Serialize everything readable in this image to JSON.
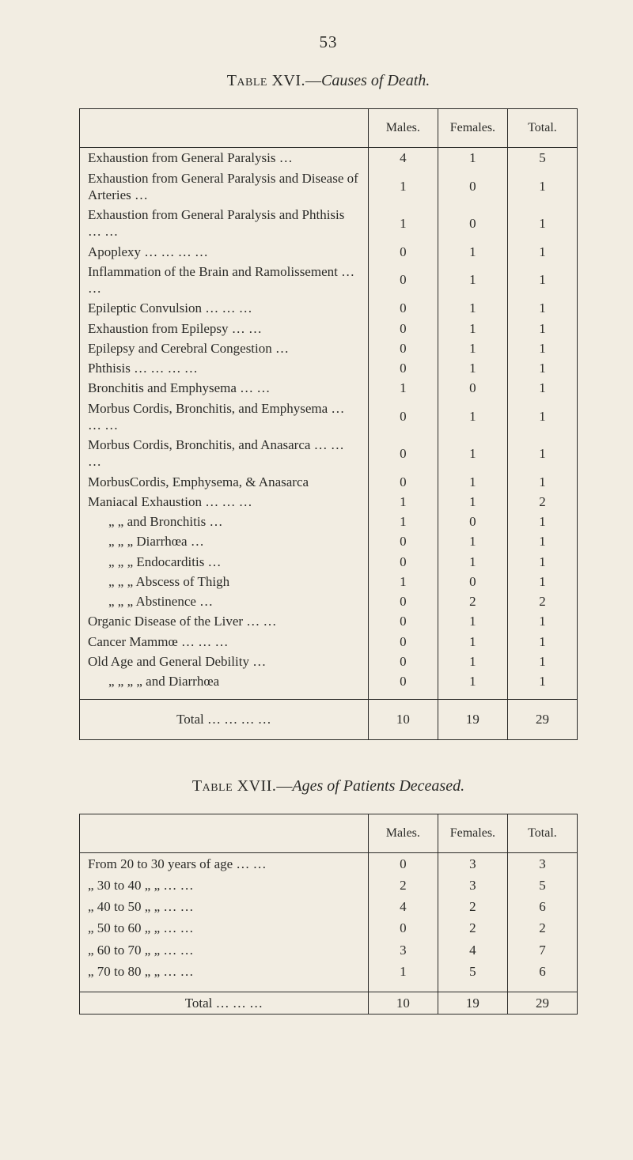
{
  "page_number": "53",
  "table16": {
    "title_sc": "Table XVI.",
    "title_dash": "—",
    "title_it": "Causes of Death.",
    "headers": {
      "males": "Males.",
      "females": "Females.",
      "total": "Total."
    },
    "rows": [
      {
        "label": "Exhaustion from General Paralysis …",
        "m": "4",
        "f": "1",
        "t": "5"
      },
      {
        "label": "Exhaustion from General Paralysis and Disease of Arteries …",
        "m": "1",
        "f": "0",
        "t": "1"
      },
      {
        "label": "Exhaustion from General Paralysis and Phthisis … …",
        "m": "1",
        "f": "0",
        "t": "1"
      },
      {
        "label": "Apoplexy … … … …",
        "m": "0",
        "f": "1",
        "t": "1"
      },
      {
        "label": "Inflammation of the Brain and Ramolissement … …",
        "m": "0",
        "f": "1",
        "t": "1"
      },
      {
        "label": "Epileptic Convulsion … … …",
        "m": "0",
        "f": "1",
        "t": "1"
      },
      {
        "label": "Exhaustion from Epilepsy … …",
        "m": "0",
        "f": "1",
        "t": "1"
      },
      {
        "label": "Epilepsy and Cerebral Congestion …",
        "m": "0",
        "f": "1",
        "t": "1"
      },
      {
        "label": "Phthisis … … … …",
        "m": "0",
        "f": "1",
        "t": "1"
      },
      {
        "label": "Bronchitis and Emphysema … …",
        "m": "1",
        "f": "0",
        "t": "1"
      },
      {
        "label": "Morbus Cordis, Bronchitis, and Emphysema … … …",
        "m": "0",
        "f": "1",
        "t": "1"
      },
      {
        "label": "Morbus Cordis, Bronchitis, and Anasarca … … …",
        "m": "0",
        "f": "1",
        "t": "1"
      },
      {
        "label": "MorbusCordis, Emphysema, & Anasarca",
        "m": "0",
        "f": "1",
        "t": "1"
      },
      {
        "label": "Maniacal Exhaustion … … …",
        "m": "1",
        "f": "1",
        "t": "2"
      },
      {
        "label": "„        „      and Bronchitis …",
        "indent": 1,
        "m": "1",
        "f": "0",
        "t": "1"
      },
      {
        "label": "„        „        „   Diarrhœa …",
        "indent": 1,
        "m": "0",
        "f": "1",
        "t": "1"
      },
      {
        "label": "„        „        „   Endocarditis …",
        "indent": 1,
        "m": "0",
        "f": "1",
        "t": "1"
      },
      {
        "label": "„        „        „   Abscess of Thigh",
        "indent": 1,
        "m": "1",
        "f": "0",
        "t": "1"
      },
      {
        "label": "„        „        „   Abstinence …",
        "indent": 1,
        "m": "0",
        "f": "2",
        "t": "2"
      },
      {
        "label": "Organic Disease of the Liver … …",
        "m": "0",
        "f": "1",
        "t": "1"
      },
      {
        "label": "Cancer Mammœ … … …",
        "m": "0",
        "f": "1",
        "t": "1"
      },
      {
        "label": "Old Age and General Debility …",
        "m": "0",
        "f": "1",
        "t": "1"
      },
      {
        "label": "„      „      „      „   and Diarrhœa",
        "indent": 1,
        "m": "0",
        "f": "1",
        "t": "1"
      }
    ],
    "total": {
      "label": "Total … … … …",
      "m": "10",
      "f": "19",
      "t": "29"
    }
  },
  "table17": {
    "title_sc": "Table XVII.",
    "title_dash": "—",
    "title_it": "Ages of Patients Deceased.",
    "headers": {
      "males": "Males.",
      "females": "Females.",
      "total": "Total."
    },
    "rows": [
      {
        "label": "From 20 to 30 years of age … …",
        "m": "0",
        "f": "3",
        "t": "3"
      },
      {
        "label": "„   30 to 40   „        „   … …",
        "m": "2",
        "f": "3",
        "t": "5"
      },
      {
        "label": "„   40 to 50   „        „   … …",
        "m": "4",
        "f": "2",
        "t": "6"
      },
      {
        "label": "„   50 to 60   „        „   … …",
        "m": "0",
        "f": "2",
        "t": "2"
      },
      {
        "label": "„   60 to 70   „        „   … …",
        "m": "3",
        "f": "4",
        "t": "7"
      },
      {
        "label": "„   70 to 80   „        „   … …",
        "m": "1",
        "f": "5",
        "t": "6"
      }
    ],
    "total": {
      "label": "Total … … …",
      "m": "10",
      "f": "19",
      "t": "29"
    }
  }
}
